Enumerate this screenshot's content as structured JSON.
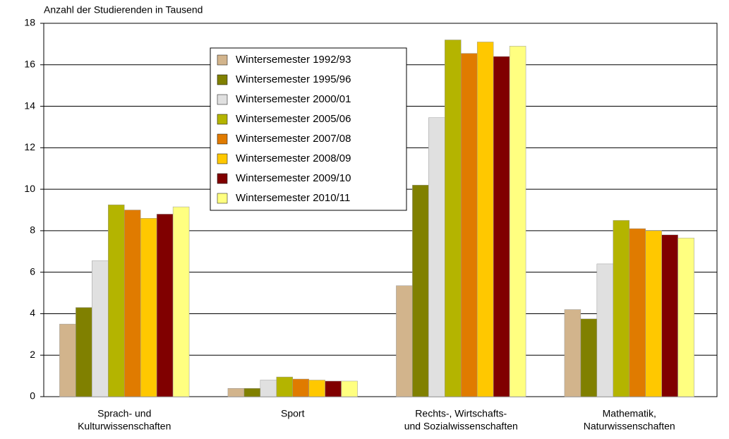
{
  "chart_data": {
    "type": "bar",
    "title": "Anzahl der Studierenden in Tausend",
    "categories": [
      [
        "Sprach- und",
        "Kulturwissenschaften"
      ],
      [
        "Sport"
      ],
      [
        "Rechts-, Wirtschafts-",
        "und Sozialwissenschaften"
      ],
      [
        "Mathematik,",
        "Naturwissenschaften"
      ]
    ],
    "series": [
      {
        "name": "Wintersemester 1992/93",
        "color": "#d2b48c",
        "values": [
          3.5,
          0.4,
          5.35,
          4.2
        ]
      },
      {
        "name": "Wintersemester 1995/96",
        "color": "#808000",
        "values": [
          4.3,
          0.4,
          10.2,
          3.75
        ]
      },
      {
        "name": "Wintersemester 2000/01",
        "color": "#e0e0e0",
        "values": [
          6.55,
          0.8,
          13.45,
          6.4
        ]
      },
      {
        "name": "Wintersemester 2005/06",
        "color": "#b4b400",
        "values": [
          9.25,
          0.95,
          17.2,
          8.5
        ]
      },
      {
        "name": "Wintersemester 2007/08",
        "color": "#e07b00",
        "values": [
          9.0,
          0.85,
          16.55,
          8.1
        ]
      },
      {
        "name": "Wintersemester 2008/09",
        "color": "#ffc800",
        "values": [
          8.6,
          0.8,
          17.1,
          8.0
        ]
      },
      {
        "name": "Wintersemester 2009/10",
        "color": "#800000",
        "values": [
          8.8,
          0.75,
          16.4,
          7.8
        ]
      },
      {
        "name": "Wintersemester 2010/11",
        "color": "#ffff80",
        "values": [
          9.15,
          0.75,
          16.9,
          7.65
        ]
      }
    ],
    "ylim": [
      0,
      18
    ],
    "yticks": [
      0,
      2,
      4,
      6,
      8,
      10,
      12,
      14,
      16,
      18
    ],
    "grid": true,
    "legend": "top-left"
  }
}
